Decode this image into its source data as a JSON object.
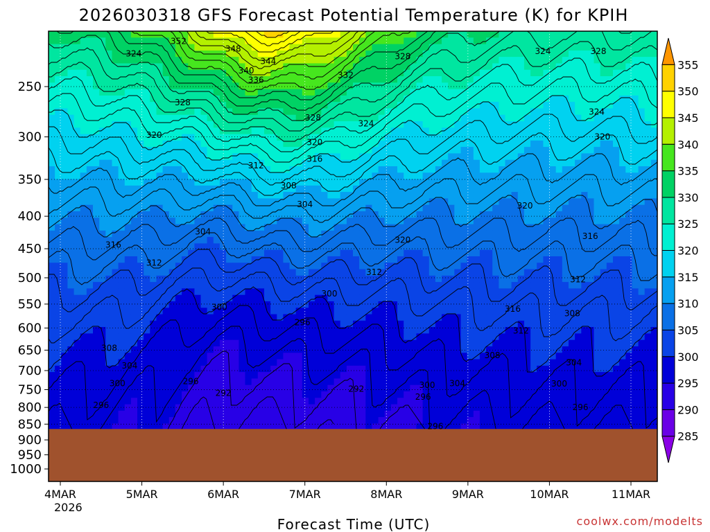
{
  "chart_data": {
    "type": "heatmap",
    "title": "2026030318 GFS Forecast Potential Temperature (K) for KPIH",
    "xlabel": "Forecast Time (UTC)",
    "ylabel": "",
    "credit": "coolwx.com/modelts",
    "x_ticks": [
      "4MAR",
      "5MAR",
      "6MAR",
      "7MAR",
      "8MAR",
      "9MAR",
      "10MAR",
      "11MAR"
    ],
    "x_year_label": "2026",
    "y_ticks": [
      250,
      300,
      350,
      400,
      450,
      500,
      550,
      600,
      650,
      700,
      750,
      800,
      850,
      900,
      950,
      1000
    ],
    "y_range_hpa": [
      1000,
      200
    ],
    "colorbar_ticks": [
      285,
      290,
      295,
      300,
      305,
      310,
      315,
      320,
      325,
      330,
      335,
      340,
      345,
      350,
      355
    ],
    "colorbar_colors": [
      "#8a00e6",
      "#6a00e6",
      "#2800e6",
      "#0000d8",
      "#0a44e6",
      "#0a70e6",
      "#06a0f0",
      "#00d2f0",
      "#00f0d2",
      "#00e6a0",
      "#00d264",
      "#46e61e",
      "#b4f000",
      "#ffff00",
      "#ffd200",
      "#ff9600"
    ],
    "surface_pressure_hpa": 865,
    "contour_labels": [
      {
        "v": "352",
        "t": 1.45,
        "p": 212
      },
      {
        "v": "348",
        "t": 2.12,
        "p": 218
      },
      {
        "v": "344",
        "t": 2.55,
        "p": 228
      },
      {
        "v": "340",
        "t": 2.28,
        "p": 236
      },
      {
        "v": "336",
        "t": 2.4,
        "p": 244
      },
      {
        "v": "332",
        "t": 3.5,
        "p": 240
      },
      {
        "v": "328",
        "t": 4.2,
        "p": 224
      },
      {
        "v": "324",
        "t": 5.92,
        "p": 220
      },
      {
        "v": "328",
        "t": 6.6,
        "p": 220
      },
      {
        "v": "324",
        "t": 0.9,
        "p": 222
      },
      {
        "v": "328",
        "t": 1.5,
        "p": 265
      },
      {
        "v": "328",
        "t": 3.1,
        "p": 280
      },
      {
        "v": "324",
        "t": 3.75,
        "p": 286
      },
      {
        "v": "324",
        "t": 6.58,
        "p": 274
      },
      {
        "v": "320",
        "t": 1.15,
        "p": 298
      },
      {
        "v": "320",
        "t": 3.12,
        "p": 306
      },
      {
        "v": "316",
        "t": 3.12,
        "p": 325
      },
      {
        "v": "320",
        "t": 6.65,
        "p": 300
      },
      {
        "v": "312",
        "t": 2.4,
        "p": 333
      },
      {
        "v": "308",
        "t": 2.8,
        "p": 358
      },
      {
        "v": "304",
        "t": 3.0,
        "p": 383
      },
      {
        "v": "320",
        "t": 5.7,
        "p": 385
      },
      {
        "v": "320",
        "t": 4.2,
        "p": 436
      },
      {
        "v": "316",
        "t": 0.65,
        "p": 444
      },
      {
        "v": "304",
        "t": 1.75,
        "p": 423
      },
      {
        "v": "316",
        "t": 6.5,
        "p": 430
      },
      {
        "v": "312",
        "t": 1.15,
        "p": 474
      },
      {
        "v": "312",
        "t": 3.85,
        "p": 490
      },
      {
        "v": "312",
        "t": 6.35,
        "p": 503
      },
      {
        "v": "300",
        "t": 3.3,
        "p": 530
      },
      {
        "v": "300",
        "t": 1.95,
        "p": 556
      },
      {
        "v": "316",
        "t": 5.55,
        "p": 560
      },
      {
        "v": "308",
        "t": 6.28,
        "p": 569
      },
      {
        "v": "296",
        "t": 2.97,
        "p": 588
      },
      {
        "v": "312",
        "t": 5.65,
        "p": 606
      },
      {
        "v": "308",
        "t": 0.6,
        "p": 645
      },
      {
        "v": "308",
        "t": 5.3,
        "p": 662
      },
      {
        "v": "304",
        "t": 0.85,
        "p": 688
      },
      {
        "v": "304",
        "t": 6.3,
        "p": 680
      },
      {
        "v": "300",
        "t": 0.7,
        "p": 733
      },
      {
        "v": "296",
        "t": 1.6,
        "p": 728
      },
      {
        "v": "300",
        "t": 4.5,
        "p": 738
      },
      {
        "v": "304",
        "t": 4.87,
        "p": 733
      },
      {
        "v": "300",
        "t": 6.12,
        "p": 734
      },
      {
        "v": "292",
        "t": 2.0,
        "p": 760
      },
      {
        "v": "292",
        "t": 3.63,
        "p": 748
      },
      {
        "v": "296",
        "t": 4.45,
        "p": 770
      },
      {
        "v": "296",
        "t": 0.5,
        "p": 794
      },
      {
        "v": "296",
        "t": 6.38,
        "p": 800
      },
      {
        "v": "296",
        "t": 4.6,
        "p": 857
      }
    ]
  }
}
